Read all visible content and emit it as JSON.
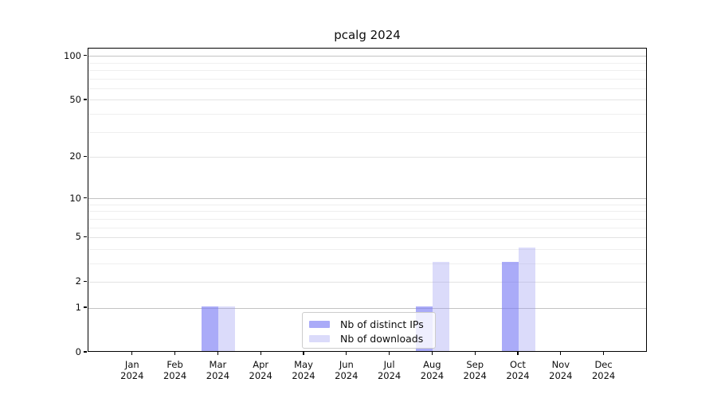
{
  "title": "pcalg 2024",
  "colors": {
    "grid_strong": "#c3c3c3",
    "grid_medium": "#e3e3e3",
    "grid_minor": "#efefef",
    "spine": "#000000",
    "bar_distinct_ips": "rgba(124,126,244,0.65)",
    "bar_downloads": "rgba(152,153,241,0.35)"
  },
  "chart_data": {
    "type": "bar",
    "title": "pcalg 2024",
    "xlabel": "",
    "ylabel": "",
    "year": "2024",
    "categories": [
      "Jan",
      "Feb",
      "Mar",
      "Apr",
      "May",
      "Jun",
      "Jul",
      "Aug",
      "Sep",
      "Oct",
      "Nov",
      "Dec"
    ],
    "series": [
      {
        "name": "Nb of distinct IPs",
        "color": "rgba(124,126,244,0.65)",
        "values": [
          0,
          0,
          1,
          0,
          0,
          0,
          0,
          1,
          0,
          3,
          0,
          0
        ]
      },
      {
        "name": "Nb of downloads",
        "color": "rgba(152,153,241,0.35)",
        "values": [
          0,
          0,
          1,
          0,
          0,
          0,
          0,
          3,
          0,
          4,
          0,
          0
        ]
      }
    ],
    "yscale": "log1p",
    "ylim": [
      0,
      113
    ],
    "yticks": [
      0,
      1,
      2,
      5,
      10,
      20,
      50,
      100
    ],
    "yticks_strong_grid": [
      1,
      10,
      100
    ],
    "yticks_medium_grid": [
      2,
      5,
      20,
      50
    ],
    "minor_yticks": [
      3,
      4,
      6,
      7,
      8,
      9,
      30,
      40,
      60,
      70,
      80,
      90
    ],
    "grid": true,
    "legend_position": "lower center"
  }
}
